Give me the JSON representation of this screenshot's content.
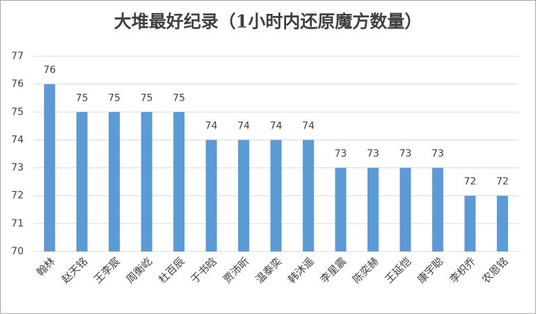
{
  "chart_data": {
    "type": "bar",
    "title": "大堆最好纪录（1小时内还原魔方数量）",
    "categories": [
      "翰林",
      "赵天铭",
      "王李宸",
      "周衡屹",
      "杜百辰",
      "于书晗",
      "贾沛昕",
      "温泰奕",
      "韩沐遥",
      "李星震",
      "陈奕赫",
      "王延恺",
      "康宇聪",
      "李枳乔",
      "农恩铭"
    ],
    "values": [
      76,
      75,
      75,
      75,
      75,
      74,
      74,
      74,
      74,
      73,
      73,
      73,
      73,
      72,
      72
    ],
    "color": "#5b9bd5",
    "ylim": [
      70,
      77
    ],
    "yticks": [
      70,
      71,
      72,
      73,
      74,
      75,
      76,
      77
    ],
    "grid": true
  }
}
